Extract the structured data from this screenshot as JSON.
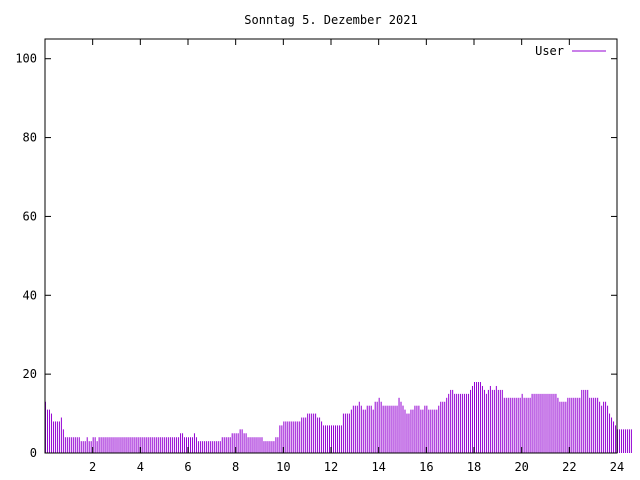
{
  "chart_data": {
    "type": "bar",
    "title": "Sonntag 5. Dezember 2021",
    "xlabel": "",
    "ylabel": "",
    "xlim": [
      0,
      24
    ],
    "ylim": [
      0,
      105
    ],
    "x_ticks": [
      2,
      4,
      6,
      8,
      10,
      12,
      14,
      16,
      18,
      20,
      22,
      24
    ],
    "y_ticks": [
      0,
      20,
      40,
      60,
      80,
      100
    ],
    "grid": false,
    "legend": "top-right",
    "series": [
      {
        "name": "User",
        "color": "#9400d3",
        "interval_minutes": 5,
        "values": [
          13,
          11,
          11,
          10,
          8,
          8,
          8,
          8,
          9,
          6,
          4,
          4,
          4,
          4,
          4,
          4,
          4,
          4,
          3,
          3,
          3,
          4,
          3,
          3,
          4,
          4,
          3,
          4,
          4,
          4,
          4,
          4,
          4,
          4,
          4,
          4,
          4,
          4,
          4,
          4,
          4,
          4,
          4,
          4,
          4,
          4,
          4,
          4,
          4,
          4,
          4,
          4,
          4,
          4,
          4,
          4,
          4,
          4,
          4,
          4,
          4,
          4,
          4,
          4,
          4,
          4,
          4,
          4,
          5,
          5,
          4,
          4,
          4,
          4,
          4,
          5,
          4,
          3,
          3,
          3,
          3,
          3,
          3,
          3,
          3,
          3,
          3,
          3,
          3,
          4,
          4,
          4,
          4,
          4,
          5,
          5,
          5,
          5,
          6,
          6,
          5,
          5,
          4,
          4,
          4,
          4,
          4,
          4,
          4,
          4,
          3,
          3,
          3,
          3,
          3,
          3,
          4,
          4,
          7,
          7,
          8,
          8,
          8,
          8,
          8,
          8,
          8,
          8,
          8,
          9,
          9,
          9,
          10,
          10,
          10,
          10,
          10,
          9,
          9,
          8,
          7,
          7,
          7,
          7,
          7,
          7,
          7,
          7,
          7,
          7,
          10,
          10,
          10,
          10,
          11,
          12,
          12,
          12,
          13,
          12,
          11,
          11,
          12,
          12,
          12,
          11,
          13,
          13,
          14,
          13,
          12,
          12,
          12,
          12,
          12,
          12,
          12,
          12,
          14,
          13,
          12,
          11,
          10,
          10,
          11,
          11,
          12,
          12,
          12,
          11,
          11,
          12,
          12,
          11,
          11,
          11,
          11,
          11,
          12,
          13,
          13,
          13,
          14,
          15,
          16,
          16,
          15,
          15,
          15,
          15,
          15,
          15,
          15,
          15,
          16,
          17,
          18,
          18,
          18,
          18,
          17,
          16,
          15,
          16,
          17,
          16,
          16,
          17,
          16,
          16,
          16,
          14,
          14,
          14,
          14,
          14,
          14,
          14,
          14,
          14,
          15,
          14,
          14,
          14,
          14,
          15,
          15,
          15,
          15,
          15,
          15,
          15,
          15,
          15,
          15,
          15,
          15,
          15,
          14,
          13,
          13,
          13,
          13,
          14,
          14,
          14,
          14,
          14,
          14,
          14,
          16,
          16,
          16,
          16,
          14,
          14,
          14,
          14,
          14,
          13,
          12,
          13,
          13,
          12,
          10,
          9,
          8,
          7,
          6,
          6,
          6,
          6,
          6,
          6,
          6,
          6
        ]
      }
    ]
  }
}
